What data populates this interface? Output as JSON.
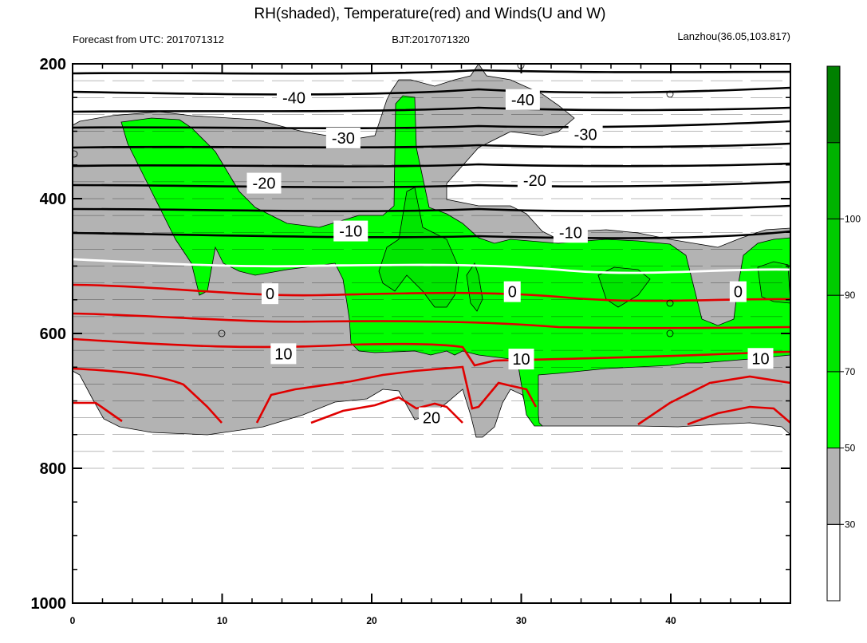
{
  "chart_data": {
    "type": "contour",
    "title": "RH(shaded), Temperature(red) and Winds(U and W)",
    "left_string": "Forecast from UTC: 2017071312",
    "center_string": "BJT:2017071320",
    "right_string": "Lanzhou(36.05,103.817)",
    "x_ticks": [
      0,
      10,
      20,
      30,
      40
    ],
    "xlim": [
      0,
      48
    ],
    "y_ticks": [
      200,
      400,
      600,
      800,
      1000
    ],
    "ylim": [
      1000,
      200
    ],
    "colorbar": {
      "levels": [
        30,
        50,
        70,
        90,
        100
      ],
      "colors": [
        "#ffffff",
        "#b3b3b3",
        "#00ff00",
        "#00e600",
        "#00cc00",
        "#00b300",
        "#008000"
      ]
    },
    "temperature_contours": [
      {
        "level": -40,
        "color": "#000000",
        "labels": [
          {
            "x": 14.8,
            "p": 250
          },
          {
            "x": 30.1,
            "p": 253
          }
        ]
      },
      {
        "level": -30,
        "color": "#000000",
        "labels": [
          {
            "x": 18.1,
            "p": 310
          },
          {
            "x": 34.3,
            "p": 305
          }
        ]
      },
      {
        "level": -20,
        "color": "#000000",
        "labels": [
          {
            "x": 12.8,
            "p": 377
          },
          {
            "x": 30.9,
            "p": 373
          }
        ]
      },
      {
        "level": -10,
        "color": "#000000",
        "labels": [
          {
            "x": 18.6,
            "p": 448
          },
          {
            "x": 33.3,
            "p": 450
          }
        ]
      },
      {
        "level": 0,
        "color": "#ffffff",
        "labels": [
          {
            "x": 13.2,
            "p": 541
          },
          {
            "x": 29.4,
            "p": 538
          },
          {
            "x": 44.5,
            "p": 538
          }
        ]
      },
      {
        "level": 10,
        "color": "#ff0000",
        "labels": [
          {
            "x": 14.1,
            "p": 630
          },
          {
            "x": 30.0,
            "p": 638
          },
          {
            "x": 46.0,
            "p": 637
          }
        ]
      },
      {
        "level": 20,
        "color": "#ff0000",
        "labels": [
          {
            "x": 24.0,
            "p": 725
          }
        ]
      }
    ]
  }
}
